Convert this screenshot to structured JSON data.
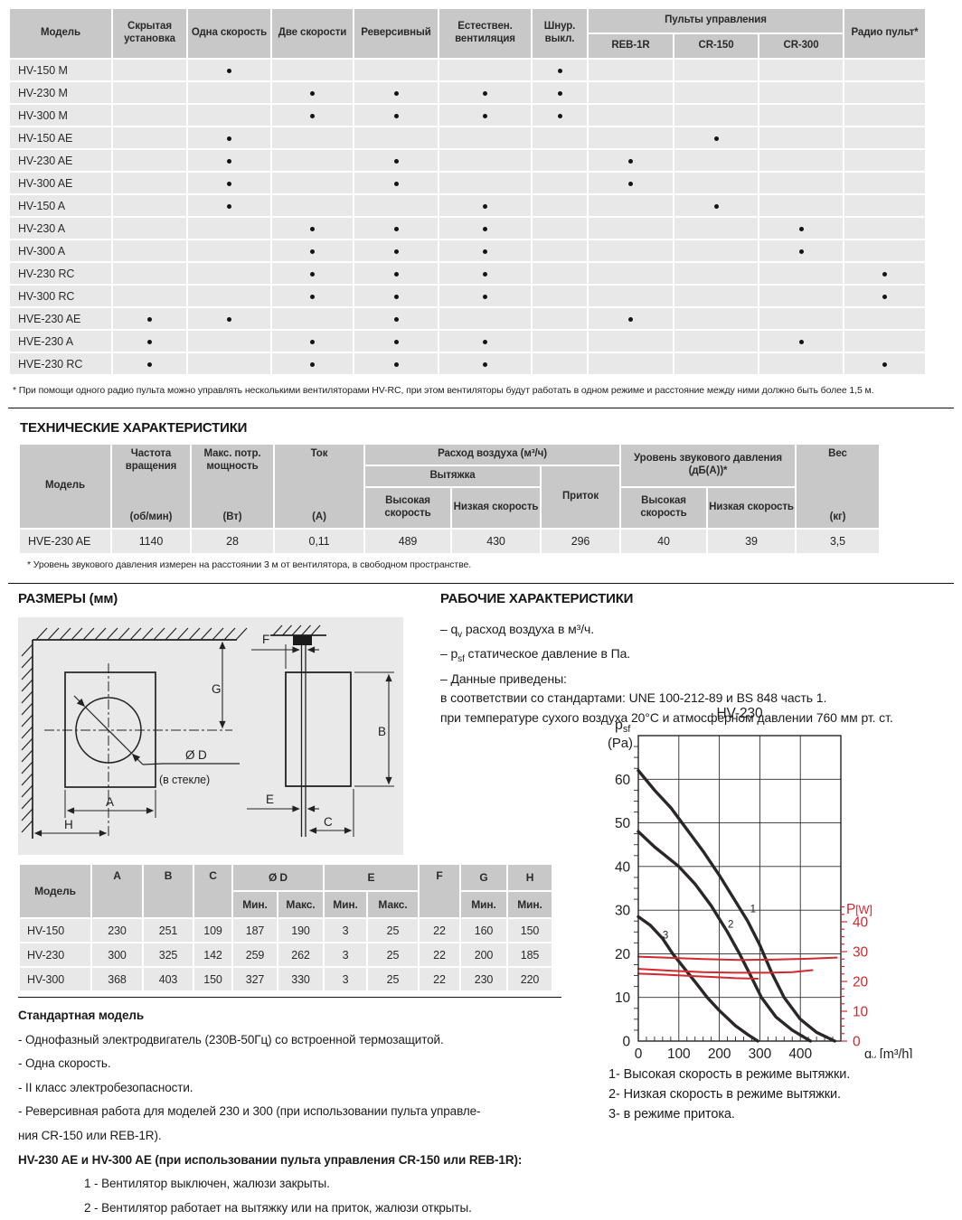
{
  "features_table": {
    "col_model": "Модель",
    "columns": [
      "Скрытая установка",
      "Одна скорость",
      "Две скорости",
      "Реверсивный",
      "Естествен. вентиляция",
      "Шнур. выкл."
    ],
    "group_header": "Пульты управления",
    "group_columns": [
      "REB-1R",
      "CR-150",
      "CR-300"
    ],
    "last_column": "Радио пульт*",
    "rows": [
      {
        "model": "HV-150 M",
        "dots": [
          0,
          1,
          0,
          0,
          0,
          1,
          0,
          0,
          0,
          0
        ]
      },
      {
        "model": "HV-230 M",
        "dots": [
          0,
          0,
          1,
          1,
          1,
          1,
          0,
          0,
          0,
          0
        ]
      },
      {
        "model": "HV-300 M",
        "dots": [
          0,
          0,
          1,
          1,
          1,
          1,
          0,
          0,
          0,
          0
        ]
      },
      {
        "model": "HV-150 AE",
        "dots": [
          0,
          1,
          0,
          0,
          0,
          0,
          0,
          1,
          0,
          0
        ]
      },
      {
        "model": "HV-230 AE",
        "dots": [
          0,
          1,
          0,
          1,
          0,
          0,
          1,
          0,
          0,
          0
        ]
      },
      {
        "model": "HV-300 AE",
        "dots": [
          0,
          1,
          0,
          1,
          0,
          0,
          1,
          0,
          0,
          0
        ]
      },
      {
        "model": "HV-150 A",
        "dots": [
          0,
          1,
          0,
          0,
          1,
          0,
          0,
          1,
          0,
          0
        ]
      },
      {
        "model": "HV-230 A",
        "dots": [
          0,
          0,
          1,
          1,
          1,
          0,
          0,
          0,
          1,
          0
        ]
      },
      {
        "model": "HV-300 A",
        "dots": [
          0,
          0,
          1,
          1,
          1,
          0,
          0,
          0,
          1,
          0
        ]
      },
      {
        "model": "HV-230 RC",
        "dots": [
          0,
          0,
          1,
          1,
          1,
          0,
          0,
          0,
          0,
          1
        ]
      },
      {
        "model": "HV-300 RC",
        "dots": [
          0,
          0,
          1,
          1,
          1,
          0,
          0,
          0,
          0,
          1
        ]
      },
      {
        "model": "HVE-230 AE",
        "dots": [
          1,
          1,
          0,
          1,
          0,
          0,
          1,
          0,
          0,
          0
        ]
      },
      {
        "model": "HVE-230 A",
        "dots": [
          1,
          0,
          1,
          1,
          1,
          0,
          0,
          0,
          1,
          0
        ]
      },
      {
        "model": "HVE-230 RC",
        "dots": [
          1,
          0,
          1,
          1,
          1,
          0,
          0,
          0,
          0,
          1
        ]
      }
    ],
    "footnote": "* При помощи одного радио пульта можно управлять несколькими вентиляторами HV-RC, при этом вентиляторы будут работать в одном режиме и расстояние между ними должно быть более 1,5 м."
  },
  "tech": {
    "title": "ТЕХНИЧЕСКИЕ ХАРАКТЕРИСТИКИ",
    "h_model": "Модель",
    "h_rpm_top": "Частота вращения",
    "h_rpm_unit": "(об/мин)",
    "h_power_top": "Макс. потр. мощность",
    "h_power_unit": "(Вт)",
    "h_current_top": "Ток",
    "h_current_unit": "(А)",
    "h_airflow": "Расход воздуха (м³/ч)",
    "h_exhaust": "Вытяжка",
    "h_supply": "Приток",
    "h_high": "Высокая скорость",
    "h_low": "Низкая скорость",
    "h_noise": "Уровень звукового давления (дБ(А))*",
    "h_weight_top": "Вес",
    "h_weight_unit": "(кг)",
    "row": {
      "model": "HVE-230 AE",
      "rpm": "1140",
      "power": "28",
      "current": "0,11",
      "exhaust_high": "489",
      "exhaust_low": "430",
      "supply": "296",
      "noise_high": "40",
      "noise_low": "39",
      "weight": "3,5"
    },
    "footnote": "* Уровень звукового давления измерен на расстоянии 3 м от вентилятора, в свободном пространстве."
  },
  "dims": {
    "title": "РАЗМЕРЫ (мм)",
    "labels": {
      "A": "A",
      "B": "B",
      "C": "C",
      "D": "Ø D",
      "glass": "(в стекле)",
      "E": "E",
      "F": "F",
      "G": "G",
      "H": "H"
    },
    "table": {
      "col_model": "Модель",
      "col_a": "A",
      "col_b": "B",
      "col_c": "C",
      "col_d": "Ø D",
      "col_e": "E",
      "col_f": "F",
      "col_g": "G",
      "col_h": "H",
      "min": "Мин.",
      "max": "Макс.",
      "rows": [
        [
          "HV-150",
          "230",
          "251",
          "109",
          "187",
          "190",
          "3",
          "25",
          "22",
          "160",
          "150"
        ],
        [
          "HV-230",
          "300",
          "325",
          "142",
          "259",
          "262",
          "3",
          "25",
          "22",
          "200",
          "185"
        ],
        [
          "HV-300",
          "368",
          "403",
          "150",
          "327",
          "330",
          "3",
          "25",
          "22",
          "230",
          "220"
        ]
      ]
    }
  },
  "perf": {
    "title": "РАБОЧИЕ ХАРАКТЕРИСТИКИ",
    "notes": [
      {
        "pre": "– q",
        "sub": "v",
        "post": " расход воздуха в м³/ч."
      },
      {
        "pre": "– p",
        "sub": "sf",
        "post": " статическое давление в Па."
      },
      {
        "pre": "– Данные приведены:",
        "sub": "",
        "post": ""
      },
      {
        "pre": "в соответствии со стандартами: UNE 100-212-89 и BS 848 часть 1.",
        "sub": "",
        "post": ""
      },
      {
        "pre": "при температуре сухого воздуха 20°С и атмосферном давлении 760 мм рт. ст.",
        "sub": "",
        "post": ""
      }
    ],
    "legend": [
      "1- Высокая скорость в режиме вытяжки.",
      "2- Низкая скорость в режиме вытяжки.",
      "3- в режиме притока."
    ]
  },
  "standard": {
    "title": "Стандартная модель",
    "lines": [
      "- Однофазный электродвигатель (230В-50Гц) со встроенной термозащитой.",
      "- Одна скорость.",
      "- II класс электробезопасности.",
      "- Реверсивная работа для моделей 230 и 300 (при использовании пульта управле-",
      "ния CR-150 или REB-1R)."
    ],
    "subtitle": "HV-230 AE и HV-300 AE (при использовании пульта управления CR-150 или REB-1R):",
    "numbered": [
      "1 - Вентилятор выключен, жалюзи закрыты.",
      "2 - Вентилятор работает на вытяжку или на приток, жалюзи открыты."
    ]
  },
  "chart_data": {
    "type": "line",
    "title": "HV-230",
    "ylabel_left": {
      "main": "p",
      "sub": "sf",
      "unit": "(Pa)"
    },
    "ylabel_right": {
      "main": "P",
      "unit": "[W]"
    },
    "xlabel": {
      "main": "q",
      "sub": "v",
      "unit": " [m³/h]"
    },
    "xlim": [
      0,
      500
    ],
    "ylim_left": [
      0,
      70
    ],
    "ylim_right": [
      0,
      40
    ],
    "x_ticks": [
      0,
      100,
      200,
      300,
      400
    ],
    "y_ticks_left": [
      0,
      10,
      20,
      30,
      40,
      50,
      60
    ],
    "y_ticks_right": [
      0,
      10,
      20,
      30,
      40
    ],
    "grid": true,
    "black_color": "#2b2727",
    "red_color": "#d2282e",
    "series": [
      {
        "id": "1",
        "axis": "left",
        "label": "1",
        "label_at": [
          276,
          29.5
        ],
        "points": [
          [
            0,
            62
          ],
          [
            40,
            57.5
          ],
          [
            80,
            53.5
          ],
          [
            120,
            48.5
          ],
          [
            160,
            43.5
          ],
          [
            200,
            38
          ],
          [
            240,
            32
          ],
          [
            270,
            27.5
          ],
          [
            300,
            22
          ],
          [
            330,
            15.5
          ],
          [
            360,
            10
          ],
          [
            400,
            5
          ],
          [
            440,
            2
          ],
          [
            485,
            0
          ]
        ]
      },
      {
        "id": "2",
        "axis": "left",
        "label": "2",
        "label_at": [
          221,
          26
        ],
        "points": [
          [
            0,
            48
          ],
          [
            40,
            44.5
          ],
          [
            80,
            41.5
          ],
          [
            100,
            40
          ],
          [
            140,
            36
          ],
          [
            180,
            31
          ],
          [
            220,
            25
          ],
          [
            250,
            20
          ],
          [
            280,
            14.5
          ],
          [
            304,
            10
          ],
          [
            340,
            5.5
          ],
          [
            380,
            2.5
          ],
          [
            425,
            0
          ]
        ]
      },
      {
        "id": "3",
        "axis": "left",
        "label": "3",
        "label_at": [
          60,
          23.5
        ],
        "points": [
          [
            0,
            28.5
          ],
          [
            30,
            26.5
          ],
          [
            60,
            23.5
          ],
          [
            85,
            20
          ],
          [
            115,
            16.5
          ],
          [
            145,
            13
          ],
          [
            170,
            10
          ],
          [
            200,
            7
          ],
          [
            240,
            3.5
          ],
          [
            270,
            1.5
          ],
          [
            295,
            0
          ]
        ]
      },
      {
        "id": "P1",
        "axis": "right",
        "label": "",
        "label_at": null,
        "points": [
          [
            0,
            28.3
          ],
          [
            80,
            27.9
          ],
          [
            160,
            27.5
          ],
          [
            250,
            27.2
          ],
          [
            330,
            27.3
          ],
          [
            420,
            27.6
          ],
          [
            490,
            28
          ]
        ]
      },
      {
        "id": "P2",
        "axis": "right",
        "label": "",
        "label_at": null,
        "points": [
          [
            0,
            24.2
          ],
          [
            80,
            23.6
          ],
          [
            160,
            23.1
          ],
          [
            240,
            22.9
          ],
          [
            320,
            22.9
          ],
          [
            380,
            23.1
          ],
          [
            430,
            23.8
          ]
        ]
      },
      {
        "id": "P3",
        "axis": "right",
        "label": "",
        "label_at": null,
        "points": [
          [
            0,
            22.6
          ],
          [
            60,
            22.3
          ],
          [
            120,
            21.9
          ],
          [
            180,
            21.5
          ],
          [
            240,
            21.1
          ],
          [
            295,
            20.9
          ]
        ]
      }
    ]
  }
}
